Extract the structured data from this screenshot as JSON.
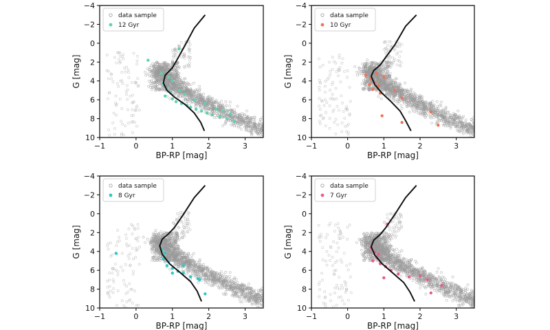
{
  "chart_data": [
    {
      "type": "scatter",
      "title": "",
      "xlabel": "BP-RP [mag]",
      "ylabel": "G [mag]",
      "xlim": [
        -1,
        3.5
      ],
      "ylim": [
        10,
        -4
      ],
      "y_inverted": true,
      "xticks": [
        -1,
        0,
        1,
        2,
        3
      ],
      "yticks": [
        -4,
        -2,
        0,
        2,
        4,
        6,
        8,
        10
      ],
      "legend": "top-left",
      "grid": false,
      "series": [
        {
          "name": "data sample",
          "style": "open-circle",
          "color": "#9a9a9a"
        },
        {
          "name": "12 Gyr",
          "style": "filled-circle",
          "color": "#5ed1b0",
          "points": [
            [
              0.33,
              1.8
            ],
            [
              1.18,
              0.6
            ],
            [
              0.7,
              3.2
            ],
            [
              0.9,
              3.6
            ],
            [
              0.75,
              4.3
            ],
            [
              0.85,
              4.8
            ],
            [
              0.95,
              5.2
            ],
            [
              0.8,
              5.6
            ],
            [
              1.0,
              5.9
            ],
            [
              1.1,
              6.2
            ],
            [
              1.25,
              6.4
            ],
            [
              1.4,
              6.6
            ],
            [
              1.5,
              6.8
            ],
            [
              1.65,
              7.0
            ],
            [
              1.8,
              7.2
            ],
            [
              1.95,
              7.4
            ],
            [
              2.1,
              7.6
            ],
            [
              2.3,
              7.8
            ],
            [
              2.5,
              8.0
            ],
            [
              2.7,
              8.3
            ],
            [
              1.0,
              4.0
            ],
            [
              1.2,
              5.0
            ],
            [
              1.35,
              5.4
            ],
            [
              1.6,
              6.0
            ],
            [
              1.9,
              6.4
            ],
            [
              2.2,
              7.0
            ],
            [
              2.4,
              7.2
            ],
            [
              2.6,
              7.5
            ]
          ]
        },
        {
          "name": "",
          "style": "line",
          "color": "#111111",
          "points": [
            [
              1.9,
              -3.0
            ],
            [
              1.6,
              -1.6
            ],
            [
              1.35,
              0.2
            ],
            [
              1.15,
              1.6
            ],
            [
              1.0,
              2.6
            ],
            [
              0.8,
              3.4
            ],
            [
              0.75,
              4.2
            ],
            [
              0.85,
              5.0
            ],
            [
              1.05,
              5.7
            ],
            [
              1.35,
              6.5
            ],
            [
              1.6,
              7.4
            ],
            [
              1.78,
              8.4
            ],
            [
              1.88,
              9.3
            ]
          ]
        }
      ]
    },
    {
      "type": "scatter",
      "title": "",
      "xlabel": "BP-RP [mag]",
      "ylabel": "G [mag]",
      "xlim": [
        -1,
        3.5
      ],
      "ylim": [
        10,
        -4
      ],
      "y_inverted": true,
      "xticks": [
        -1,
        0,
        1,
        2,
        3
      ],
      "yticks": [
        -4,
        -2,
        0,
        2,
        4,
        6,
        8,
        10
      ],
      "legend": "top-left",
      "grid": false,
      "series": [
        {
          "name": "data sample",
          "style": "open-circle",
          "color": "#9a9a9a"
        },
        {
          "name": "10 Gyr",
          "style": "filled-circle",
          "color": "#f07355",
          "points": [
            [
              0.5,
              3.4
            ],
            [
              0.65,
              3.8
            ],
            [
              0.75,
              4.2
            ],
            [
              0.85,
              4.5
            ],
            [
              0.7,
              4.9
            ],
            [
              0.9,
              5.3
            ],
            [
              1.0,
              3.6
            ],
            [
              1.3,
              5.0
            ],
            [
              1.5,
              5.8
            ],
            [
              2.3,
              7.3
            ],
            [
              0.95,
              7.7
            ],
            [
              1.5,
              8.4
            ],
            [
              2.5,
              8.7
            ],
            [
              0.6,
              4.4
            ],
            [
              0.8,
              3.2
            ]
          ]
        },
        {
          "name": "",
          "style": "line",
          "color": "#111111",
          "points": [
            [
              1.9,
              -3.0
            ],
            [
              1.6,
              -1.8
            ],
            [
              1.3,
              0.2
            ],
            [
              1.05,
              1.5
            ],
            [
              0.9,
              2.3
            ],
            [
              0.72,
              2.9
            ],
            [
              0.65,
              3.5
            ],
            [
              0.75,
              4.4
            ],
            [
              0.95,
              5.3
            ],
            [
              1.2,
              6.2
            ],
            [
              1.45,
              7.2
            ],
            [
              1.6,
              8.2
            ],
            [
              1.75,
              9.3
            ]
          ]
        }
      ]
    },
    {
      "type": "scatter",
      "title": "",
      "xlabel": "BP-RP [mag]",
      "ylabel": "G [mag]",
      "xlim": [
        -1,
        3.5
      ],
      "ylim": [
        10,
        -4
      ],
      "y_inverted": true,
      "xticks": [
        -1,
        0,
        1,
        2,
        3
      ],
      "yticks": [
        -4,
        -2,
        0,
        2,
        4,
        6,
        8,
        10
      ],
      "legend": "top-left",
      "grid": false,
      "series": [
        {
          "name": "data sample",
          "style": "open-circle",
          "color": "#9a9a9a"
        },
        {
          "name": "8 Gyr",
          "style": "filled-circle",
          "color": "#2fc7c4",
          "points": [
            [
              -0.55,
              4.2
            ],
            [
              0.7,
              3.8
            ],
            [
              0.8,
              4.2
            ],
            [
              0.75,
              4.8
            ],
            [
              0.9,
              5.1
            ],
            [
              0.85,
              5.5
            ],
            [
              1.0,
              5.8
            ],
            [
              1.15,
              6.1
            ],
            [
              1.3,
              6.3
            ],
            [
              1.5,
              6.7
            ],
            [
              1.7,
              6.9
            ],
            [
              1.3,
              5.5
            ],
            [
              1.75,
              7.0
            ],
            [
              1.9,
              8.5
            ],
            [
              1.0,
              6.3
            ]
          ]
        },
        {
          "name": "",
          "style": "line",
          "color": "#111111",
          "points": [
            [
              1.9,
              -3.0
            ],
            [
              1.6,
              -1.7
            ],
            [
              1.3,
              0.1
            ],
            [
              1.05,
              1.5
            ],
            [
              0.9,
              2.1
            ],
            [
              0.72,
              2.7
            ],
            [
              0.65,
              3.4
            ],
            [
              0.72,
              4.3
            ],
            [
              0.92,
              5.3
            ],
            [
              1.2,
              6.2
            ],
            [
              1.5,
              7.2
            ],
            [
              1.68,
              8.2
            ],
            [
              1.8,
              9.3
            ]
          ]
        }
      ]
    },
    {
      "type": "scatter",
      "title": "",
      "xlabel": "BP-RP [mag]",
      "ylabel": "G [mag]",
      "xlim": [
        -1,
        3.5
      ],
      "ylim": [
        10,
        -4
      ],
      "y_inverted": true,
      "xticks": [
        -1,
        0,
        1,
        2,
        3
      ],
      "yticks": [
        -4,
        -2,
        0,
        2,
        4,
        6,
        8,
        10
      ],
      "legend": "top-left",
      "grid": false,
      "series": [
        {
          "name": "data sample",
          "style": "open-circle",
          "color": "#9a9a9a"
        },
        {
          "name": "7 Gyr",
          "style": "filled-circle",
          "color": "#e95c8f",
          "points": [
            [
              1.1,
              1.1
            ],
            [
              0.65,
              3.6
            ],
            [
              0.75,
              4.1
            ],
            [
              0.8,
              4.6
            ],
            [
              0.7,
              5.0
            ],
            [
              0.9,
              5.3
            ],
            [
              1.05,
              5.6
            ],
            [
              1.2,
              6.0
            ],
            [
              1.4,
              6.4
            ],
            [
              1.7,
              6.7
            ],
            [
              2.0,
              6.6
            ],
            [
              2.2,
              7.0
            ],
            [
              2.6,
              7.6
            ],
            [
              2.3,
              8.4
            ],
            [
              1.0,
              6.8
            ],
            [
              0.85,
              4.3
            ]
          ]
        },
        {
          "name": "",
          "style": "line",
          "color": "#111111",
          "points": [
            [
              1.9,
              -3.0
            ],
            [
              1.6,
              -1.7
            ],
            [
              1.3,
              0.1
            ],
            [
              1.05,
              1.5
            ],
            [
              0.9,
              2.2
            ],
            [
              0.72,
              2.8
            ],
            [
              0.65,
              3.5
            ],
            [
              0.75,
              4.4
            ],
            [
              0.95,
              5.3
            ],
            [
              1.25,
              6.3
            ],
            [
              1.55,
              7.3
            ],
            [
              1.72,
              8.3
            ],
            [
              1.85,
              9.3
            ]
          ]
        }
      ]
    }
  ]
}
